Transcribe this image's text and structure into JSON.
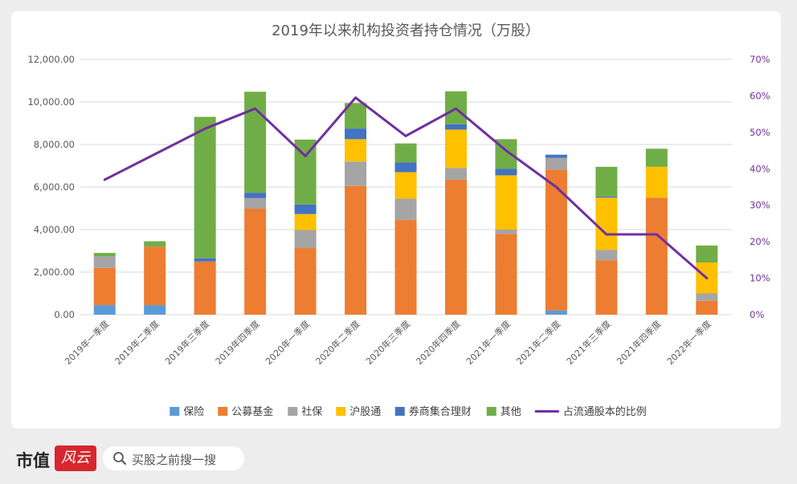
{
  "chart_data": {
    "type": "bar",
    "stacked": true,
    "title": "2019年以来机构投资者持仓情况（万股）",
    "categories": [
      "2019年一季度",
      "2019年二季度",
      "2019年三季度",
      "2019年四季度",
      "2020年一季度",
      "2020年二季度",
      "2020年三季度",
      "2020年四季度",
      "2021年一季度",
      "2021年二季度",
      "2021年三季度",
      "2021年四季度",
      "2022年一季度"
    ],
    "y_left": {
      "min": 0,
      "max": 12000,
      "ticks": [
        "0.00",
        "2,000.00",
        "4,000.00",
        "6,000.00",
        "8,000.00",
        "10,000.00",
        "12,000.00"
      ]
    },
    "y_right": {
      "min": 0,
      "max": 70,
      "ticks": [
        "0%",
        "10%",
        "20%",
        "30%",
        "40%",
        "50%",
        "60%",
        "70%"
      ]
    },
    "grid": true,
    "legend_position": "bottom",
    "series": [
      {
        "name": "保险",
        "color": "#5b9bd5",
        "values": [
          450,
          450,
          0,
          0,
          0,
          0,
          0,
          0,
          0,
          200,
          0,
          0,
          0
        ]
      },
      {
        "name": "公募基金",
        "color": "#ed7d31",
        "values": [
          1750,
          2750,
          2500,
          4980,
          3130,
          6050,
          4450,
          6350,
          3800,
          6620,
          2550,
          5500,
          650
        ]
      },
      {
        "name": "社保",
        "color": "#a5a5a5",
        "values": [
          550,
          0,
          0,
          500,
          850,
          1150,
          1000,
          550,
          200,
          550,
          500,
          0,
          350
        ]
      },
      {
        "name": "沪股通",
        "color": "#ffc000",
        "values": [
          0,
          0,
          0,
          0,
          750,
          1050,
          1250,
          1800,
          2550,
          0,
          2450,
          1450,
          1450
        ]
      },
      {
        "name": "券商集合理财",
        "color": "#4472c4",
        "values": [
          0,
          0,
          150,
          250,
          450,
          500,
          450,
          250,
          300,
          150,
          50,
          0,
          0
        ]
      },
      {
        "name": "其他",
        "color": "#70ad47",
        "values": [
          150,
          250,
          6650,
          4750,
          3050,
          1200,
          900,
          1550,
          1400,
          0,
          1400,
          850,
          800
        ]
      }
    ],
    "line_series": {
      "name": "占流通股本的比例",
      "color": "#7030a0",
      "axis": "right",
      "values": [
        37,
        44,
        51,
        56.5,
        43.5,
        59.5,
        49,
        56.5,
        45,
        35,
        22,
        22,
        10
      ]
    }
  },
  "footer": {
    "brand_text": "市值",
    "brand_badge": "风云",
    "search_placeholder": "买股之前搜一搜"
  }
}
